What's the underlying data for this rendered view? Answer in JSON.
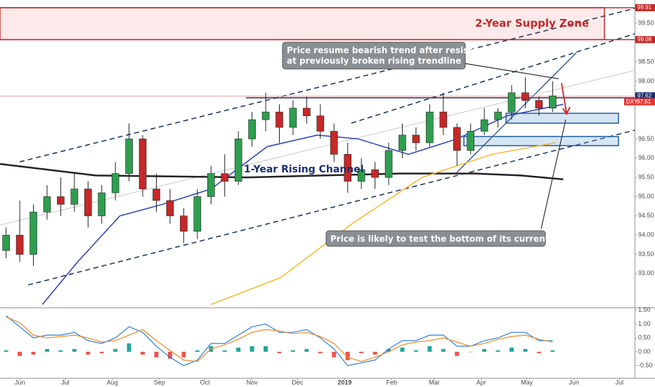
{
  "chart_data": {
    "type": "candlestick",
    "up_color": "#2e9e4e",
    "down_color": "#c62828",
    "xlim": [
      -13,
      405
    ],
    "ylim": [
      92.12,
      100.11
    ],
    "xticks": [
      {
        "value": 0,
        "label": "Jun"
      },
      {
        "value": 30,
        "label": "Jul"
      },
      {
        "value": 61,
        "label": "Aug"
      },
      {
        "value": 92,
        "label": "Sep"
      },
      {
        "value": 122,
        "label": "Oct"
      },
      {
        "value": 153,
        "label": "Nov"
      },
      {
        "value": 183,
        "label": "Dec"
      },
      {
        "value": 214,
        "label": "2019"
      },
      {
        "value": 245,
        "label": "Feb"
      },
      {
        "value": 273,
        "label": "Mar"
      },
      {
        "value": 304,
        "label": "Apr"
      },
      {
        "value": 334,
        "label": "May"
      },
      {
        "value": 365,
        "label": "Jun"
      },
      {
        "value": 395,
        "label": "Jul"
      }
    ],
    "yticks": [
      {
        "value": 99.5,
        "label": "99.50"
      },
      {
        "value": 98.5,
        "label": "98.50"
      },
      {
        "value": 98,
        "label": "98.00"
      },
      {
        "value": 97.5,
        "label": "97.50"
      },
      {
        "value": 96.5,
        "label": "96.50"
      },
      {
        "value": 96,
        "label": "96.00"
      },
      {
        "value": 95.5,
        "label": "95.50"
      },
      {
        "value": 95,
        "label": "95.00"
      },
      {
        "value": 94.5,
        "label": "94.50"
      },
      {
        "value": 94,
        "label": "94.00"
      },
      {
        "value": 93.5,
        "label": "93.50"
      },
      {
        "value": 93,
        "label": "93.00"
      }
    ],
    "price_tags": [
      99.91,
      99.08,
      97.62
    ],
    "symbol_tag": {
      "name": "DXY",
      "value": 97.61
    },
    "candles": [
      {
        "x": -9,
        "open": 93.6,
        "high": 94.2,
        "low": 93.4,
        "close": 94.0
      },
      {
        "x": 0,
        "open": 94.0,
        "high": 94.9,
        "low": 93.3,
        "close": 93.5
      },
      {
        "x": 9,
        "open": 93.5,
        "high": 94.8,
        "low": 93.2,
        "close": 94.6
      },
      {
        "x": 18,
        "open": 94.6,
        "high": 95.3,
        "low": 94.4,
        "close": 95.0
      },
      {
        "x": 27,
        "open": 95.0,
        "high": 95.5,
        "low": 94.5,
        "close": 94.8
      },
      {
        "x": 36,
        "open": 94.8,
        "high": 95.6,
        "low": 94.6,
        "close": 95.2
      },
      {
        "x": 45,
        "open": 95.2,
        "high": 95.4,
        "low": 94.2,
        "close": 94.5
      },
      {
        "x": 54,
        "open": 94.5,
        "high": 95.3,
        "low": 94.3,
        "close": 95.1
      },
      {
        "x": 63,
        "open": 95.1,
        "high": 95.9,
        "low": 94.9,
        "close": 95.6
      },
      {
        "x": 72,
        "open": 95.6,
        "high": 96.9,
        "low": 95.4,
        "close": 96.5
      },
      {
        "x": 81,
        "open": 96.5,
        "high": 96.6,
        "low": 95.0,
        "close": 95.2
      },
      {
        "x": 90,
        "open": 95.2,
        "high": 95.6,
        "low": 94.6,
        "close": 94.9
      },
      {
        "x": 99,
        "open": 94.9,
        "high": 95.2,
        "low": 94.3,
        "close": 94.5
      },
      {
        "x": 108,
        "open": 94.5,
        "high": 94.7,
        "low": 93.8,
        "close": 94.1
      },
      {
        "x": 117,
        "open": 94.1,
        "high": 95.2,
        "low": 93.9,
        "close": 95.0
      },
      {
        "x": 126,
        "open": 95.0,
        "high": 95.8,
        "low": 94.8,
        "close": 95.6
      },
      {
        "x": 135,
        "open": 95.6,
        "high": 96.1,
        "low": 95.0,
        "close": 95.4
      },
      {
        "x": 144,
        "open": 95.4,
        "high": 96.7,
        "low": 95.3,
        "close": 96.5
      },
      {
        "x": 153,
        "open": 96.5,
        "high": 97.2,
        "low": 96.3,
        "close": 97.0
      },
      {
        "x": 162,
        "open": 97.0,
        "high": 97.7,
        "low": 96.7,
        "close": 97.2
      },
      {
        "x": 171,
        "open": 97.2,
        "high": 97.4,
        "low": 96.4,
        "close": 96.8
      },
      {
        "x": 180,
        "open": 96.8,
        "high": 97.5,
        "low": 96.6,
        "close": 97.3
      },
      {
        "x": 189,
        "open": 97.3,
        "high": 97.6,
        "low": 96.9,
        "close": 97.1
      },
      {
        "x": 198,
        "open": 97.1,
        "high": 97.4,
        "low": 96.5,
        "close": 96.7
      },
      {
        "x": 207,
        "open": 96.7,
        "high": 96.9,
        "low": 95.9,
        "close": 96.1
      },
      {
        "x": 216,
        "open": 96.1,
        "high": 96.4,
        "low": 95.1,
        "close": 95.4
      },
      {
        "x": 225,
        "open": 95.4,
        "high": 96.0,
        "low": 95.2,
        "close": 95.7
      },
      {
        "x": 234,
        "open": 95.7,
        "high": 95.9,
        "low": 95.2,
        "close": 95.5
      },
      {
        "x": 243,
        "open": 95.5,
        "high": 96.4,
        "low": 95.3,
        "close": 96.2
      },
      {
        "x": 252,
        "open": 96.2,
        "high": 96.9,
        "low": 96.0,
        "close": 96.6
      },
      {
        "x": 261,
        "open": 96.6,
        "high": 96.8,
        "low": 96.2,
        "close": 96.4
      },
      {
        "x": 270,
        "open": 96.4,
        "high": 97.4,
        "low": 96.3,
        "close": 97.2
      },
      {
        "x": 279,
        "open": 97.2,
        "high": 97.7,
        "low": 96.6,
        "close": 96.8
      },
      {
        "x": 288,
        "open": 96.8,
        "high": 96.9,
        "low": 95.8,
        "close": 96.2
      },
      {
        "x": 297,
        "open": 96.2,
        "high": 96.9,
        "low": 96.1,
        "close": 96.7
      },
      {
        "x": 306,
        "open": 96.7,
        "high": 97.3,
        "low": 96.6,
        "close": 97.0
      },
      {
        "x": 315,
        "open": 97.0,
        "high": 97.3,
        "low": 96.8,
        "close": 97.2
      },
      {
        "x": 324,
        "open": 97.2,
        "high": 97.9,
        "low": 97.0,
        "close": 97.7
      },
      {
        "x": 333,
        "open": 97.7,
        "high": 98.1,
        "low": 97.3,
        "close": 97.5
      },
      {
        "x": 342,
        "open": 97.5,
        "high": 97.6,
        "low": 97.1,
        "close": 97.3
      },
      {
        "x": 351,
        "open": 97.3,
        "high": 98.0,
        "low": 97.2,
        "close": 97.62
      }
    ],
    "overlays": [
      {
        "color": "#222222",
        "x": [
          -13,
          50,
          150,
          250,
          300,
          330,
          358
        ],
        "values": [
          95.85,
          95.55,
          95.5,
          95.6,
          95.6,
          95.55,
          95.45
        ]
      },
      {
        "color": "#f2b82c",
        "x": [
          126,
          172,
          219,
          265,
          311,
          353
        ],
        "values": [
          92.2,
          92.9,
          94.3,
          95.5,
          96.1,
          96.4
        ]
      },
      {
        "color": "#2b3fb8",
        "x": [
          15,
          38,
          66,
          94,
          126,
          163,
          196,
          223,
          256,
          288,
          321,
          358
        ],
        "values": [
          92.2,
          93.3,
          94.5,
          94.8,
          95.2,
          96.3,
          96.6,
          96.5,
          96.1,
          96.5,
          97.1,
          97.4
        ]
      }
    ],
    "annotations": {
      "zone": "2-Year Supply Zone",
      "bearish": [
        "Price resume bearish trend after resistance",
        "at previously broken rising trendline"
      ],
      "channel": "1-Year Rising Channel",
      "range": "Price is likely to test the bottom of its current range"
    },
    "indicator": {
      "ylim": [
        -0.94,
        1.57
      ],
      "yticks": [
        {
          "value": 1.5,
          "label": "1.50"
        },
        {
          "value": 1,
          "label": "1.00"
        },
        {
          "value": 0.5,
          "label": "0.50"
        },
        {
          "value": 0,
          "label": "0.00"
        },
        {
          "value": -0.5,
          "label": "-0.50"
        }
      ],
      "histogram": [
        0.05,
        -0.15,
        -0.1,
        0.1,
        0.05,
        0.1,
        -0.1,
        -0.05,
        0.1,
        0.3,
        -0.1,
        -0.2,
        -0.25,
        -0.2,
        0.05,
        0.2,
        0.05,
        0.15,
        0.2,
        0.2,
        -0.05,
        0.05,
        0.1,
        -0.05,
        -0.2,
        -0.3,
        -0.05,
        -0.1,
        0.1,
        0.15,
        0.05,
        0.2,
        0.1,
        -0.15,
        0.0,
        0.1,
        0.05,
        0.15,
        0.1,
        -0.05,
        0.05
      ],
      "macd": [
        1.3,
        0.9,
        0.5,
        0.6,
        0.6,
        0.7,
        0.4,
        0.3,
        0.5,
        0.9,
        0.7,
        0.2,
        -0.2,
        -0.5,
        -0.3,
        0.3,
        0.3,
        0.6,
        0.9,
        1.0,
        0.7,
        0.7,
        0.8,
        0.5,
        0.1,
        -0.5,
        -0.4,
        -0.3,
        0.1,
        0.4,
        0.4,
        0.6,
        0.6,
        0.2,
        0.2,
        0.4,
        0.5,
        0.7,
        0.7,
        0.4,
        0.4
      ],
      "signal": [
        1.25,
        1.05,
        0.6,
        0.5,
        0.55,
        0.6,
        0.5,
        0.35,
        0.4,
        0.6,
        0.8,
        0.4,
        0.05,
        -0.3,
        -0.35,
        0.1,
        0.25,
        0.45,
        0.7,
        0.8,
        0.75,
        0.65,
        0.7,
        0.55,
        0.3,
        -0.2,
        -0.35,
        -0.2,
        0.0,
        0.25,
        0.35,
        0.4,
        0.5,
        0.35,
        0.2,
        0.3,
        0.45,
        0.55,
        0.6,
        0.45,
        0.35
      ],
      "macd_color": "#2f7fe0",
      "signal_color": "#f08a24",
      "up_color": "#26a69a",
      "down_color": "#ef5350"
    }
  }
}
